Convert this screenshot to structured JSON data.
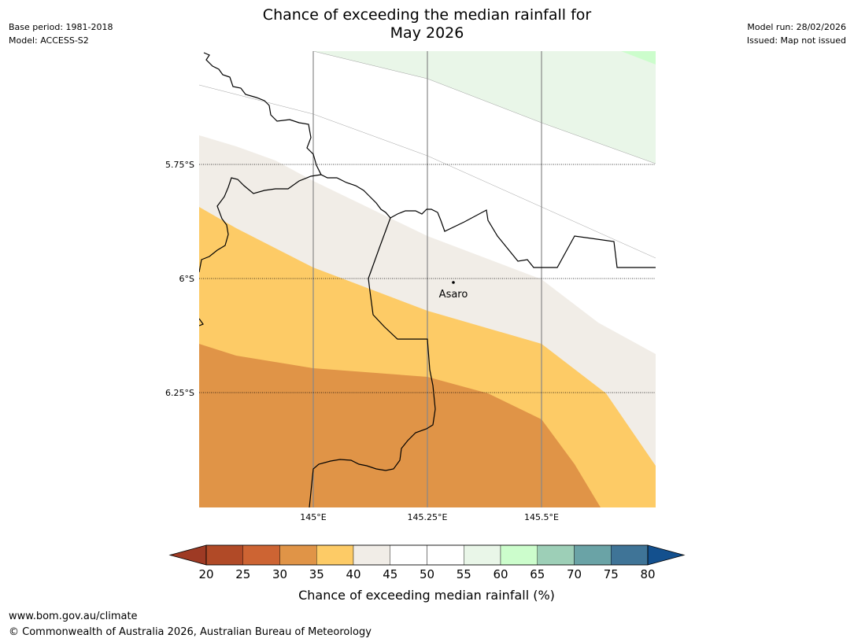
{
  "header": {
    "title_line1": "Chance of exceeding the median rainfall for",
    "title_line2": "May 2026",
    "base_period": "Base period: 1981-2018",
    "model": "Model: ACCESS-S2",
    "model_run": "Model run: 28/02/2026",
    "issued": "Issued: Map not issued"
  },
  "map": {
    "lat_labels": [
      "5.75°S",
      "6°S",
      "6.25°S"
    ],
    "lon_labels": [
      "145°E",
      "145.25°E",
      "145.5°E"
    ],
    "place": "Asaro",
    "colors": {
      "band_20_25": "#b14a27",
      "band_25_30": "#cd6433",
      "band_30_35": "#e09447",
      "band_35_40": "#fdcb66",
      "band_40_45": "#f1ede7",
      "band_45_55": "#ffffff",
      "band_55_60": "#e9f6e8",
      "band_60_65": "#ccfdcc"
    }
  },
  "colorbar": {
    "ticks": [
      "20",
      "25",
      "30",
      "35",
      "40",
      "45",
      "50",
      "55",
      "60",
      "65",
      "70",
      "75",
      "80"
    ],
    "label": "Chance of exceeding median rainfall (%)",
    "colors": [
      "#9e3a24",
      "#b14a27",
      "#cd6433",
      "#e09447",
      "#fdcb66",
      "#f1ede7",
      "#ffffff",
      "#ffffff",
      "#e9f6e8",
      "#ccfdcc",
      "#9dcfb7",
      "#6aa3a6",
      "#3f7497",
      "#13508e"
    ]
  },
  "footer": {
    "url": "www.bom.gov.au/climate",
    "copyright": "© Commonwealth of Australia 2026, Australian Bureau of Meteorology"
  }
}
